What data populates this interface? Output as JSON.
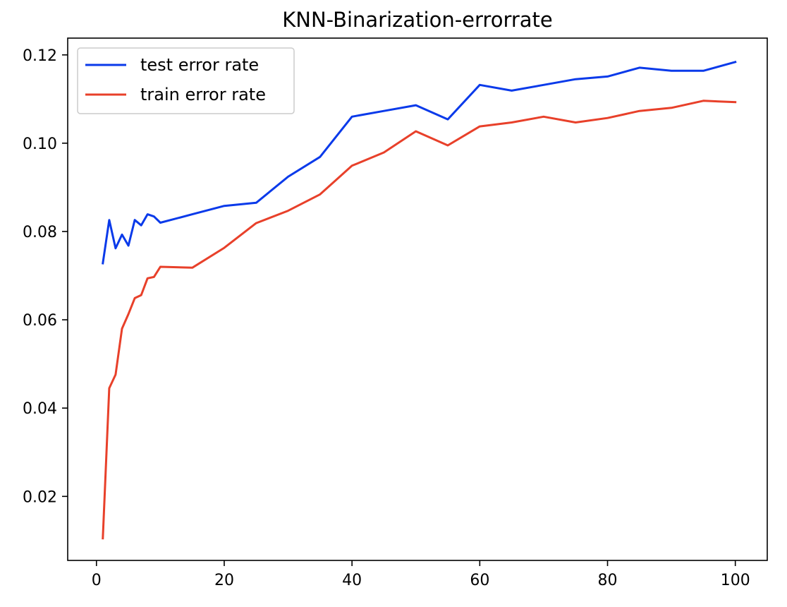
{
  "chart_data": {
    "type": "line",
    "title": "KNN-Binarization-errorrate",
    "xlabel": "",
    "ylabel": "",
    "xlim": [
      -4.5,
      105
    ],
    "ylim": [
      0.0055,
      0.1238
    ],
    "xticks": [
      0,
      20,
      40,
      60,
      80,
      100
    ],
    "yticks": [
      0.02,
      0.04,
      0.06,
      0.08,
      0.1,
      0.12
    ],
    "xtick_labels": [
      "0",
      "20",
      "40",
      "60",
      "80",
      "100"
    ],
    "ytick_labels": [
      "0.02",
      "0.04",
      "0.06",
      "0.08",
      "0.10",
      "0.12"
    ],
    "grid": false,
    "legend_position": "upper-left",
    "x": [
      1,
      2,
      3,
      4,
      5,
      6,
      7,
      8,
      9,
      10,
      15,
      20,
      25,
      30,
      35,
      40,
      45,
      50,
      55,
      60,
      65,
      70,
      75,
      80,
      85,
      90,
      95,
      100
    ],
    "series": [
      {
        "name": "test error rate",
        "color": "#0a3aea",
        "values": [
          0.0728,
          0.0826,
          0.0762,
          0.0793,
          0.0768,
          0.0826,
          0.0814,
          0.0839,
          0.0834,
          0.082,
          0.0839,
          0.0858,
          0.0865,
          0.0924,
          0.0969,
          0.106,
          0.1073,
          0.1086,
          0.1054,
          0.1132,
          0.1119,
          0.1132,
          0.1145,
          0.1151,
          0.1171,
          0.1164,
          0.1164,
          0.1184
        ]
      },
      {
        "name": "train error rate",
        "color": "#e8402a",
        "values": [
          0.0105,
          0.0445,
          0.0476,
          0.058,
          0.0613,
          0.0649,
          0.0656,
          0.0694,
          0.0697,
          0.072,
          0.0718,
          0.0763,
          0.0819,
          0.0847,
          0.0884,
          0.0949,
          0.0979,
          0.1027,
          0.0995,
          0.1038,
          0.1047,
          0.106,
          0.1047,
          0.1057,
          0.1073,
          0.108,
          0.1096,
          0.1093
        ]
      }
    ]
  }
}
